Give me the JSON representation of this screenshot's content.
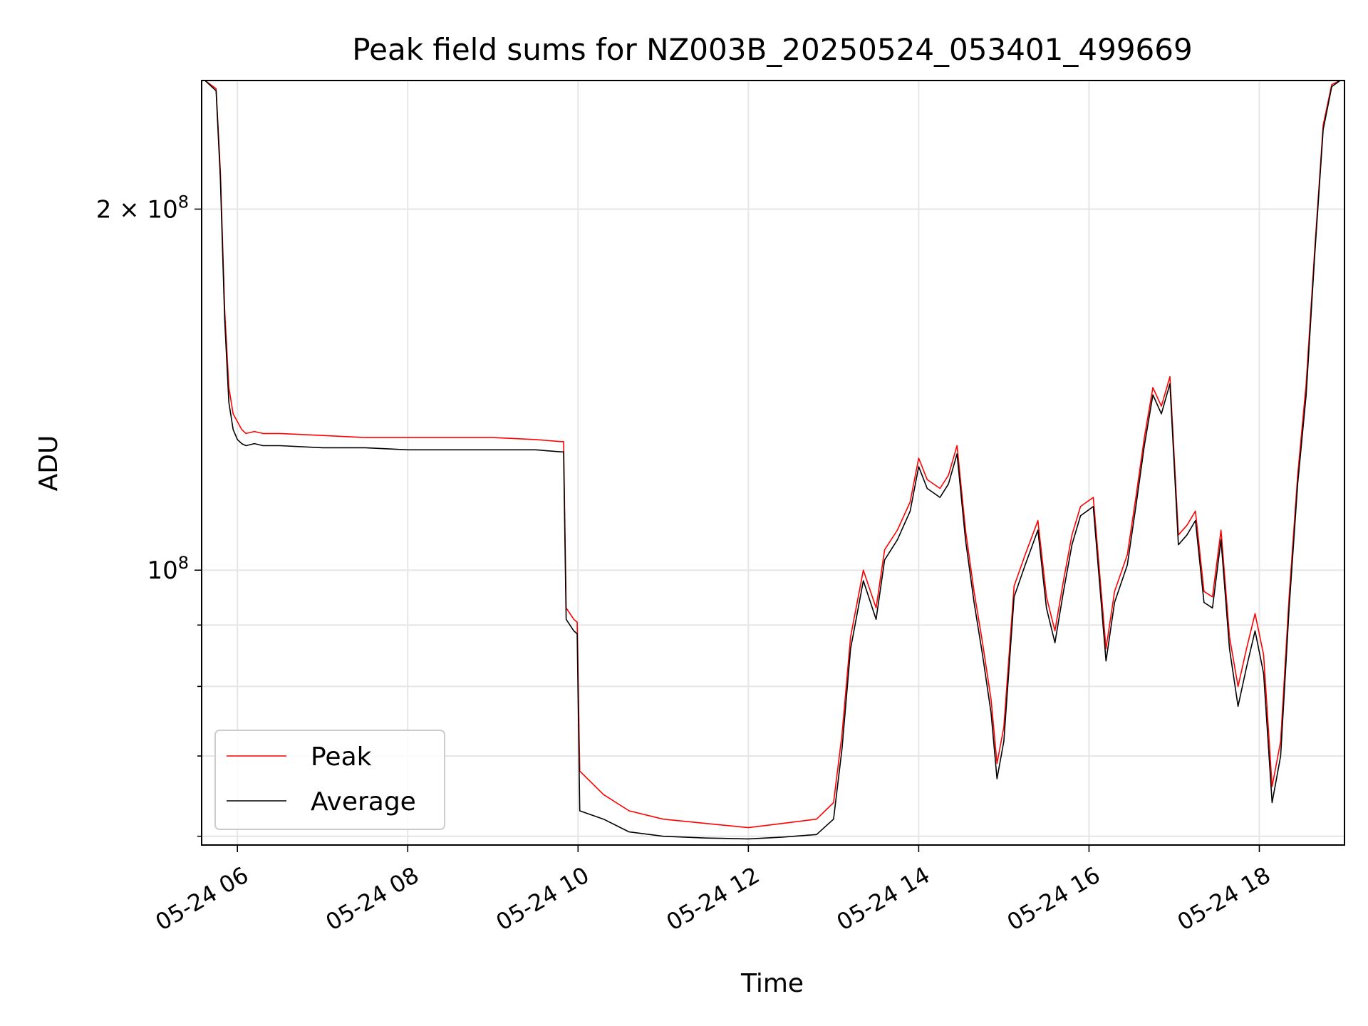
{
  "chart_data": {
    "type": "line",
    "title": "Peak field sums for NZ003B_20250524_053401_499669",
    "xlabel": "Time",
    "ylabel": "ADU",
    "yscale": "log",
    "grid": true,
    "legend_location": "lower-left",
    "x_unit": "hour of 2025-05-24",
    "xlim": [
      5.58,
      19.0
    ],
    "ylim": [
      59000000,
      256000000
    ],
    "x_ticks": [
      {
        "value": 6,
        "label": "05-24 06"
      },
      {
        "value": 8,
        "label": "05-24 08"
      },
      {
        "value": 10,
        "label": "05-24 10"
      },
      {
        "value": 12,
        "label": "05-24 12"
      },
      {
        "value": 14,
        "label": "05-24 14"
      },
      {
        "value": 16,
        "label": "05-24 16"
      },
      {
        "value": 18,
        "label": "05-24 18"
      }
    ],
    "y_major_ticks": [
      {
        "value": 100000000,
        "base": "10",
        "exponent": "8"
      },
      {
        "value": 200000000,
        "mantissa": "2 × 10",
        "exponent": "8"
      }
    ],
    "y_minor_ticks": [
      60000000,
      70000000,
      80000000,
      90000000
    ],
    "series": [
      {
        "name": "Peak",
        "color": "#ff0000",
        "x": [
          5.62,
          5.75,
          5.8,
          5.85,
          5.9,
          5.95,
          6.0,
          6.05,
          6.1,
          6.2,
          6.3,
          6.5,
          7.0,
          7.5,
          8.0,
          8.5,
          9.0,
          9.5,
          9.8,
          9.83,
          9.86,
          9.95,
          9.99,
          10.02,
          10.3,
          10.6,
          11.0,
          11.5,
          12.0,
          12.4,
          12.8,
          13.0,
          13.1,
          13.2,
          13.35,
          13.5,
          13.6,
          13.75,
          13.9,
          14.0,
          14.1,
          14.25,
          14.35,
          14.45,
          14.55,
          14.65,
          14.75,
          14.85,
          14.92,
          15.0,
          15.12,
          15.25,
          15.4,
          15.5,
          15.6,
          15.7,
          15.8,
          15.9,
          16.05,
          16.2,
          16.3,
          16.45,
          16.55,
          16.65,
          16.75,
          16.85,
          16.95,
          17.05,
          17.15,
          17.25,
          17.35,
          17.45,
          17.55,
          17.65,
          17.75,
          17.85,
          17.95,
          18.05,
          18.15,
          18.25,
          18.35,
          18.45,
          18.55,
          18.65,
          18.75,
          18.85,
          18.95
        ],
        "y": [
          256000000,
          252000000,
          215000000,
          165000000,
          142000000,
          135000000,
          133000000,
          131000000,
          130000000,
          130500000,
          130000000,
          130000000,
          129500000,
          129000000,
          129000000,
          129000000,
          129000000,
          128500000,
          128000000,
          128000000,
          93000000,
          91000000,
          90500000,
          68000000,
          65000000,
          63000000,
          62000000,
          61500000,
          61000000,
          61500000,
          62000000,
          64000000,
          73000000,
          88000000,
          100000000,
          93000000,
          104000000,
          108000000,
          114000000,
          124000000,
          119000000,
          117000000,
          120000000,
          127000000,
          108000000,
          96000000,
          87000000,
          78000000,
          69000000,
          74000000,
          97000000,
          103000000,
          110000000,
          95000000,
          89000000,
          98000000,
          107000000,
          113000000,
          115000000,
          86000000,
          96000000,
          103000000,
          115000000,
          129000000,
          142000000,
          137000000,
          145000000,
          107000000,
          109000000,
          112000000,
          96000000,
          95000000,
          108000000,
          88000000,
          80000000,
          86000000,
          92000000,
          85000000,
          66000000,
          72000000,
          95000000,
          120000000,
          143000000,
          185000000,
          235000000,
          254000000,
          256000000
        ]
      },
      {
        "name": "Average",
        "color": "#000000",
        "x": [
          5.62,
          5.75,
          5.8,
          5.85,
          5.9,
          5.95,
          6.0,
          6.05,
          6.1,
          6.2,
          6.3,
          6.5,
          7.0,
          7.5,
          8.0,
          8.5,
          9.0,
          9.5,
          9.8,
          9.83,
          9.86,
          9.95,
          9.99,
          10.02,
          10.3,
          10.6,
          11.0,
          11.5,
          12.0,
          12.4,
          12.8,
          13.0,
          13.1,
          13.2,
          13.35,
          13.5,
          13.6,
          13.75,
          13.9,
          14.0,
          14.1,
          14.25,
          14.35,
          14.45,
          14.55,
          14.65,
          14.75,
          14.85,
          14.92,
          15.0,
          15.12,
          15.25,
          15.4,
          15.5,
          15.6,
          15.7,
          15.8,
          15.9,
          16.05,
          16.2,
          16.3,
          16.45,
          16.55,
          16.65,
          16.75,
          16.85,
          16.95,
          17.05,
          17.15,
          17.25,
          17.35,
          17.45,
          17.55,
          17.65,
          17.75,
          17.85,
          17.95,
          18.05,
          18.15,
          18.25,
          18.35,
          18.45,
          18.55,
          18.65,
          18.75,
          18.85,
          18.95
        ],
        "y": [
          256000000,
          251000000,
          212000000,
          162000000,
          138000000,
          131000000,
          128500000,
          127500000,
          127000000,
          127500000,
          127000000,
          127000000,
          126500000,
          126500000,
          126000000,
          126000000,
          126000000,
          126000000,
          125500000,
          125500000,
          91000000,
          89000000,
          88500000,
          63000000,
          62000000,
          60500000,
          60000000,
          59800000,
          59700000,
          59900000,
          60200000,
          62000000,
          71000000,
          86000000,
          98000000,
          91000000,
          102000000,
          106000000,
          112000000,
          122000000,
          117000000,
          115000000,
          118000000,
          125000000,
          106000000,
          94000000,
          85000000,
          76000000,
          67000000,
          72000000,
          95000000,
          101000000,
          108000000,
          93000000,
          87000000,
          96000000,
          105000000,
          111000000,
          113000000,
          84000000,
          94000000,
          101000000,
          113000000,
          127000000,
          140000000,
          135000000,
          143000000,
          105000000,
          107000000,
          110000000,
          94000000,
          93000000,
          106000000,
          86000000,
          77000000,
          83000000,
          89000000,
          82000000,
          64000000,
          70000000,
          93000000,
          118000000,
          140000000,
          183000000,
          233000000,
          253000000,
          256000000
        ]
      }
    ]
  }
}
